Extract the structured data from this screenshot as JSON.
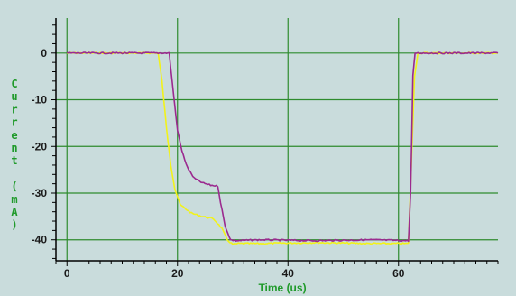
{
  "chart_data": {
    "type": "line",
    "title": "",
    "xlabel": "Time (us)",
    "ylabel": "Current (mA)",
    "xlim": [
      -2,
      78
    ],
    "ylim": [
      -44.5,
      7.5
    ],
    "xticks": [
      0,
      20,
      40,
      60
    ],
    "xtick_labels": [
      "0",
      "20",
      "40",
      "60"
    ],
    "yticks": [
      0,
      -10,
      -20,
      -30,
      -40
    ],
    "ytick_labels": [
      "0",
      "-10",
      "-20",
      "-30",
      "-40"
    ],
    "grid": true,
    "legend": "none",
    "colors": {
      "background": "#c9dcdc",
      "grid": "#2e8b2e",
      "axis": "#000000",
      "axis_title": "#1f9a2a"
    },
    "series": [
      {
        "color": "#9b2a8f",
        "x": [
          0,
          10,
          18.5,
          19.3,
          20.0,
          20.8,
          21.8,
          23.0,
          24.5,
          26.0,
          27.3,
          27.8,
          28.6,
          29.6,
          30.5,
          35,
          45,
          55,
          61.8,
          62.2,
          62.6,
          63.0,
          65,
          70,
          78
        ],
        "y": [
          0,
          0,
          0,
          -9,
          -16.5,
          -21,
          -24.5,
          -26.8,
          -27.8,
          -28.3,
          -28.5,
          -32,
          -37,
          -40,
          -40.2,
          -40,
          -40.2,
          -40,
          -40.2,
          -30,
          -5,
          0,
          0,
          0,
          0
        ]
      },
      {
        "color": "#f2f21a",
        "x": [
          0,
          10,
          16.5,
          17.2,
          18.0,
          18.8,
          19.5,
          20.5,
          22.5,
          24.5,
          26.5,
          28.0,
          29.0,
          30.0,
          31.0,
          35,
          45,
          55,
          61.8,
          62.3,
          62.9,
          63.5,
          65,
          70,
          78
        ],
        "y": [
          0,
          0,
          0,
          -6,
          -16,
          -24,
          -29,
          -32.5,
          -34.3,
          -35.0,
          -35.5,
          -37.5,
          -40,
          -41,
          -40.8,
          -40.8,
          -40.6,
          -40.8,
          -40.8,
          -25,
          -5,
          0,
          0,
          0,
          0
        ]
      }
    ]
  }
}
